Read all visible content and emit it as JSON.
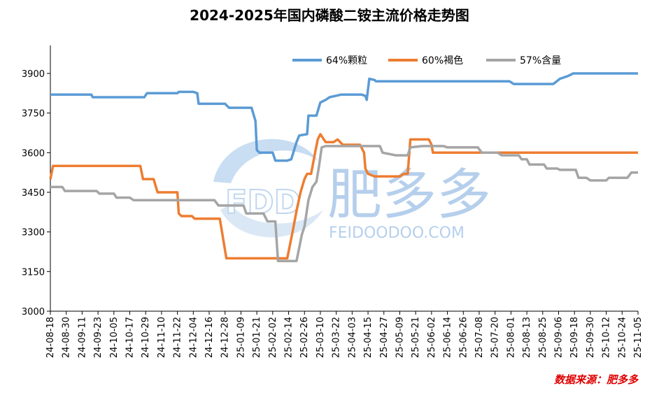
{
  "title": "2024-2025年国内磷酸二铵主流价格走势图",
  "source": "数据来源：肥多多",
  "watermark": {
    "text_cn": "肥多多",
    "text_en": "FEIDOODOO.COM",
    "logo": "FDD"
  },
  "chart_data": {
    "type": "line",
    "ylim": [
      3000,
      3900
    ],
    "yticks": [
      3000,
      3150,
      3300,
      3450,
      3600,
      3750,
      3900
    ],
    "xticks": [
      "24-08-18",
      "24-08-30",
      "24-09-11",
      "24-09-23",
      "24-10-05",
      "24-10-17",
      "24-10-29",
      "24-11-10",
      "24-11-22",
      "24-12-04",
      "24-12-16",
      "24-12-28",
      "25-01-09",
      "25-01-21",
      "25-02-02",
      "25-02-14",
      "25-02-26",
      "25-03-10",
      "25-03-22",
      "25-04-03",
      "25-04-15",
      "25-04-27",
      "25-05-09",
      "25-05-21",
      "25-06-02",
      "25-06-14",
      "25-06-26",
      "25-07-08",
      "25-07-20",
      "25-08-01",
      "25-08-13",
      "25-08-25",
      "25-09-06",
      "25-09-18",
      "25-09-30",
      "25-10-12",
      "25-10-24",
      "25-11-05"
    ],
    "legend_position": "top-right",
    "grid": false,
    "series": [
      {
        "name": "64%颗粒",
        "color": "#5b9bd5",
        "points": [
          [
            "24-08-18",
            3820
          ],
          [
            "24-09-18",
            3820
          ],
          [
            "24-09-19",
            3810
          ],
          [
            "24-10-28",
            3810
          ],
          [
            "24-10-30",
            3825
          ],
          [
            "24-11-22",
            3825
          ],
          [
            "24-11-23",
            3830
          ],
          [
            "24-12-04",
            3830
          ],
          [
            "24-12-07",
            3825
          ],
          [
            "24-12-08",
            3785
          ],
          [
            "24-12-28",
            3785
          ],
          [
            "24-12-31",
            3770
          ],
          [
            "25-01-17",
            3770
          ],
          [
            "25-01-20",
            3720
          ],
          [
            "25-01-21",
            3610
          ],
          [
            "25-01-23",
            3600
          ],
          [
            "25-02-02",
            3600
          ],
          [
            "25-02-04",
            3570
          ],
          [
            "25-02-13",
            3570
          ],
          [
            "25-02-16",
            3575
          ],
          [
            "25-02-20",
            3640
          ],
          [
            "25-02-22",
            3665
          ],
          [
            "25-02-28",
            3670
          ],
          [
            "25-03-01",
            3740
          ],
          [
            "25-03-07",
            3740
          ],
          [
            "25-03-10",
            3790
          ],
          [
            "25-03-14",
            3800
          ],
          [
            "25-03-17",
            3810
          ],
          [
            "25-03-26",
            3820
          ],
          [
            "25-04-10",
            3820
          ],
          [
            "25-04-13",
            3815
          ],
          [
            "25-04-14",
            3800
          ],
          [
            "25-04-16",
            3880
          ],
          [
            "25-04-20",
            3875
          ],
          [
            "25-04-21",
            3870
          ],
          [
            "25-07-31",
            3870
          ],
          [
            "25-08-03",
            3860
          ],
          [
            "25-09-02",
            3860
          ],
          [
            "25-09-07",
            3880
          ],
          [
            "25-09-13",
            3890
          ],
          [
            "25-09-17",
            3900
          ],
          [
            "25-11-05",
            3900
          ]
        ]
      },
      {
        "name": "60%褐色",
        "color": "#ed7d31",
        "points": [
          [
            "24-08-18",
            3500
          ],
          [
            "24-08-20",
            3550
          ],
          [
            "24-10-25",
            3550
          ],
          [
            "24-10-27",
            3500
          ],
          [
            "24-11-04",
            3500
          ],
          [
            "24-11-07",
            3450
          ],
          [
            "24-11-22",
            3450
          ],
          [
            "24-11-23",
            3370
          ],
          [
            "24-11-25",
            3360
          ],
          [
            "24-12-03",
            3360
          ],
          [
            "24-12-05",
            3350
          ],
          [
            "24-12-24",
            3350
          ],
          [
            "24-12-29",
            3200
          ],
          [
            "25-02-13",
            3200
          ],
          [
            "25-02-15",
            3250
          ],
          [
            "25-02-17",
            3300
          ],
          [
            "25-02-20",
            3380
          ],
          [
            "25-02-23",
            3450
          ],
          [
            "25-02-26",
            3500
          ],
          [
            "25-02-28",
            3520
          ],
          [
            "25-03-03",
            3520
          ],
          [
            "25-03-06",
            3600
          ],
          [
            "25-03-08",
            3650
          ],
          [
            "25-03-10",
            3670
          ],
          [
            "25-03-14",
            3640
          ],
          [
            "25-03-20",
            3640
          ],
          [
            "25-03-23",
            3650
          ],
          [
            "25-03-27",
            3630
          ],
          [
            "25-04-09",
            3630
          ],
          [
            "25-04-12",
            3600
          ],
          [
            "25-04-13",
            3540
          ],
          [
            "25-04-15",
            3520
          ],
          [
            "25-04-20",
            3510
          ],
          [
            "25-05-09",
            3510
          ],
          [
            "25-05-12",
            3520
          ],
          [
            "25-05-15",
            3520
          ],
          [
            "25-05-17",
            3650
          ],
          [
            "25-05-31",
            3650
          ],
          [
            "25-06-02",
            3630
          ],
          [
            "25-06-03",
            3600
          ],
          [
            "25-11-05",
            3600
          ]
        ]
      },
      {
        "name": "57%含量",
        "color": "#a5a5a5",
        "points": [
          [
            "24-08-18",
            3470
          ],
          [
            "24-08-27",
            3470
          ],
          [
            "24-08-29",
            3455
          ],
          [
            "24-09-22",
            3455
          ],
          [
            "24-09-24",
            3445
          ],
          [
            "24-10-05",
            3445
          ],
          [
            "24-10-07",
            3430
          ],
          [
            "24-10-17",
            3430
          ],
          [
            "24-10-20",
            3420
          ],
          [
            "24-12-20",
            3420
          ],
          [
            "24-12-23",
            3400
          ],
          [
            "25-01-11",
            3400
          ],
          [
            "25-01-13",
            3370
          ],
          [
            "25-01-26",
            3370
          ],
          [
            "25-01-29",
            3340
          ],
          [
            "25-02-04",
            3340
          ],
          [
            "25-02-06",
            3190
          ],
          [
            "25-02-20",
            3190
          ],
          [
            "25-02-22",
            3240
          ],
          [
            "25-02-24",
            3290
          ],
          [
            "25-02-26",
            3320
          ],
          [
            "25-03-01",
            3420
          ],
          [
            "25-03-04",
            3470
          ],
          [
            "25-03-07",
            3490
          ],
          [
            "25-03-09",
            3550
          ],
          [
            "25-03-11",
            3620
          ],
          [
            "25-03-14",
            3625
          ],
          [
            "25-04-24",
            3625
          ],
          [
            "25-04-26",
            3600
          ],
          [
            "25-05-06",
            3590
          ],
          [
            "25-05-15",
            3590
          ],
          [
            "25-05-17",
            3620
          ],
          [
            "25-05-26",
            3625
          ],
          [
            "25-06-11",
            3625
          ],
          [
            "25-06-14",
            3620
          ],
          [
            "25-07-07",
            3620
          ],
          [
            "25-07-10",
            3600
          ],
          [
            "25-07-22",
            3600
          ],
          [
            "25-07-25",
            3590
          ],
          [
            "25-08-07",
            3590
          ],
          [
            "25-08-09",
            3575
          ],
          [
            "25-08-13",
            3575
          ],
          [
            "25-08-15",
            3555
          ],
          [
            "25-08-26",
            3555
          ],
          [
            "25-08-28",
            3540
          ],
          [
            "25-09-05",
            3540
          ],
          [
            "25-09-07",
            3535
          ],
          [
            "25-09-19",
            3535
          ],
          [
            "25-09-21",
            3505
          ],
          [
            "25-09-27",
            3505
          ],
          [
            "25-09-30",
            3495
          ],
          [
            "25-10-12",
            3495
          ],
          [
            "25-10-14",
            3505
          ],
          [
            "25-10-28",
            3505
          ],
          [
            "25-10-31",
            3525
          ],
          [
            "25-11-05",
            3525
          ]
        ]
      }
    ]
  }
}
